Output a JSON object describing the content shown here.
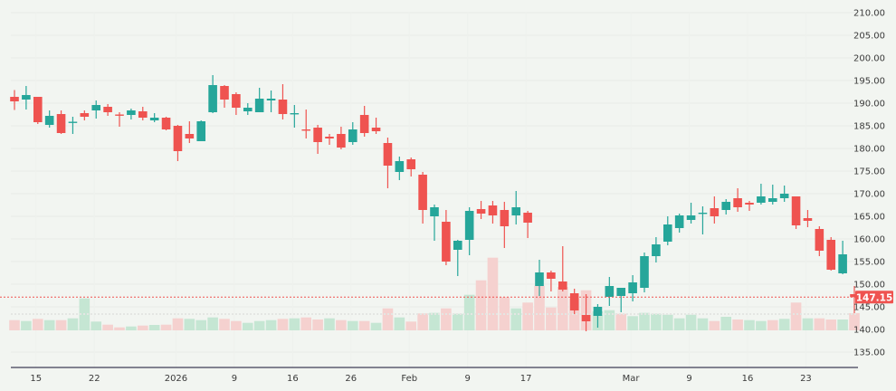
{
  "chart_data": {
    "type": "candlestick",
    "title": "",
    "xlabel": "",
    "ylabel": "",
    "ylim": [
      135,
      210
    ],
    "y_ticks": [
      "135.00",
      "140.00",
      "145.00",
      "150.00",
      "155.00",
      "160.00",
      "165.00",
      "170.00",
      "175.00",
      "180.00",
      "185.00",
      "190.00",
      "195.00",
      "200.00",
      "205.00",
      "210.00"
    ],
    "x_tick_labels": [
      {
        "date": "2025-12-15",
        "label": "15"
      },
      {
        "date": "2025-12-22",
        "label": "22"
      },
      {
        "date": "2026-01-02",
        "label": "2026"
      },
      {
        "date": "2026-01-09",
        "label": "9"
      },
      {
        "date": "2026-01-16",
        "label": "16"
      },
      {
        "date": "2026-01-26",
        "label": "26"
      },
      {
        "date": "2026-02-02",
        "label": "Feb"
      },
      {
        "date": "2026-02-09",
        "label": "9"
      },
      {
        "date": "2026-02-17",
        "label": "17"
      },
      {
        "date": "2026-03-02",
        "label": "Mar"
      },
      {
        "date": "2026-03-09",
        "label": "9"
      },
      {
        "date": "2026-03-16",
        "label": "16"
      },
      {
        "date": "2026-03-23",
        "label": "23"
      }
    ],
    "grid": true,
    "last_price": "147.15",
    "colors": {
      "up": "#26a69a",
      "down": "#ef5350",
      "volume_up": "#c5e6d3",
      "volume_down": "#f5d1cf",
      "background": "#f2f5f1"
    },
    "dates": [
      "2025-12-11",
      "2025-12-12",
      "2025-12-15",
      "2025-12-16",
      "2025-12-17",
      "2025-12-18",
      "2025-12-19",
      "2025-12-22",
      "2025-12-23",
      "2025-12-24",
      "2025-12-26",
      "2025-12-29",
      "2025-12-30",
      "2025-12-31",
      "2026-01-02",
      "2026-01-05",
      "2026-01-06",
      "2026-01-07",
      "2026-01-08",
      "2026-01-09",
      "2026-01-12",
      "2026-01-13",
      "2026-01-14",
      "2026-01-15",
      "2026-01-16",
      "2026-01-20",
      "2026-01-21",
      "2026-01-22",
      "2026-01-23",
      "2026-01-26",
      "2026-01-27",
      "2026-01-28",
      "2026-01-29",
      "2026-01-30",
      "2026-02-02",
      "2026-02-03",
      "2026-02-04",
      "2026-02-05",
      "2026-02-06",
      "2026-02-09",
      "2026-02-10",
      "2026-02-11",
      "2026-02-12",
      "2026-02-13",
      "2026-02-17",
      "2026-02-18",
      "2026-02-19",
      "2026-02-20",
      "2026-02-23",
      "2026-02-24",
      "2026-02-25",
      "2026-02-26",
      "2026-02-27",
      "2026-03-02",
      "2026-03-03",
      "2026-03-04",
      "2026-03-05",
      "2026-03-06",
      "2026-03-09",
      "2026-03-10",
      "2026-03-11",
      "2026-03-12",
      "2026-03-13",
      "2026-03-16",
      "2026-03-17",
      "2026-03-18",
      "2026-03-19",
      "2026-03-20",
      "2026-03-23",
      "2026-03-24",
      "2026-03-25",
      "2026-03-26",
      "2026-03-27"
    ],
    "ohlc": [
      [
        191.4,
        192.9,
        188.5,
        190.4
      ],
      [
        190.8,
        193.8,
        188.6,
        191.8
      ],
      [
        191.4,
        191.4,
        185.4,
        185.8
      ],
      [
        185.2,
        188.4,
        184.6,
        187.2
      ],
      [
        187.6,
        188.4,
        183.2,
        183.4
      ],
      [
        185.7,
        187.0,
        183.2,
        185.9
      ],
      [
        187.8,
        188.4,
        186.2,
        187.0
      ],
      [
        188.4,
        190.6,
        186.6,
        189.6
      ],
      [
        189.2,
        189.8,
        187.2,
        188.0
      ],
      [
        187.5,
        188.0,
        184.8,
        187.3
      ],
      [
        187.4,
        188.8,
        186.4,
        188.4
      ],
      [
        188.2,
        189.2,
        186.2,
        186.8
      ],
      [
        186.2,
        187.8,
        185.8,
        186.8
      ],
      [
        186.8,
        187.0,
        184.0,
        184.2
      ],
      [
        185.0,
        185.2,
        177.2,
        179.4
      ],
      [
        183.2,
        186.0,
        181.2,
        182.2
      ],
      [
        181.6,
        186.2,
        181.6,
        186.0
      ],
      [
        188.0,
        196.2,
        187.8,
        194.0
      ],
      [
        193.8,
        194.0,
        189.0,
        190.8
      ],
      [
        192.0,
        192.4,
        187.4,
        189.0
      ],
      [
        188.2,
        190.0,
        187.4,
        189.0
      ],
      [
        188.0,
        193.4,
        188.0,
        191.0
      ],
      [
        190.6,
        192.8,
        188.0,
        191.0
      ],
      [
        190.8,
        194.2,
        186.4,
        187.6
      ],
      [
        187.6,
        189.6,
        184.6,
        187.8
      ],
      [
        184.2,
        188.6,
        182.2,
        184.0
      ],
      [
        184.6,
        185.2,
        178.8,
        181.4
      ],
      [
        182.6,
        183.2,
        180.8,
        182.2
      ],
      [
        183.2,
        184.8,
        179.8,
        180.2
      ],
      [
        181.4,
        185.8,
        180.8,
        184.2
      ],
      [
        187.4,
        189.4,
        182.6,
        183.4
      ],
      [
        184.6,
        186.8,
        183.2,
        183.8
      ],
      [
        181.2,
        182.4,
        171.2,
        176.2
      ],
      [
        174.8,
        178.2,
        173.0,
        177.2
      ],
      [
        177.6,
        178.0,
        173.8,
        175.4
      ],
      [
        174.2,
        174.8,
        163.4,
        166.4
      ],
      [
        165.0,
        167.6,
        159.6,
        167.0
      ],
      [
        163.8,
        166.4,
        154.2,
        155.0
      ],
      [
        157.6,
        159.8,
        151.8,
        159.6
      ],
      [
        159.8,
        167.0,
        156.4,
        166.2
      ],
      [
        166.6,
        168.4,
        164.4,
        165.6
      ],
      [
        167.4,
        168.4,
        163.4,
        165.2
      ],
      [
        166.4,
        168.2,
        158.0,
        162.8
      ],
      [
        165.2,
        170.6,
        163.2,
        167.0
      ],
      [
        165.8,
        166.2,
        160.2,
        163.6
      ],
      [
        149.6,
        155.4,
        147.4,
        152.6
      ],
      [
        152.6,
        153.0,
        148.4,
        151.2
      ],
      [
        150.6,
        158.4,
        148.4,
        148.8
      ],
      [
        148.0,
        149.0,
        143.4,
        144.2
      ],
      [
        143.2,
        147.8,
        139.6,
        141.8
      ],
      [
        143.0,
        145.6,
        140.4,
        145.0
      ],
      [
        147.2,
        151.6,
        145.2,
        149.6
      ],
      [
        147.4,
        149.2,
        143.8,
        149.2
      ],
      [
        148.0,
        152.0,
        146.2,
        150.4
      ],
      [
        149.2,
        157.0,
        148.2,
        156.2
      ],
      [
        156.2,
        160.4,
        154.8,
        158.8
      ],
      [
        159.4,
        165.0,
        158.6,
        163.2
      ],
      [
        162.4,
        165.6,
        161.4,
        165.2
      ],
      [
        164.2,
        168.0,
        163.4,
        165.2
      ],
      [
        165.6,
        167.2,
        161.0,
        165.8
      ],
      [
        166.8,
        169.4,
        163.4,
        165.0
      ],
      [
        166.4,
        168.8,
        165.4,
        168.2
      ],
      [
        169.0,
        171.2,
        166.0,
        167.0
      ],
      [
        168.0,
        168.4,
        166.2,
        167.6
      ],
      [
        168.0,
        172.2,
        167.6,
        169.4
      ],
      [
        168.2,
        172.0,
        167.6,
        169.0
      ],
      [
        169.0,
        171.8,
        168.2,
        170.0
      ],
      [
        169.4,
        169.4,
        162.2,
        163.0
      ],
      [
        164.6,
        166.4,
        162.6,
        164.0
      ],
      [
        162.2,
        162.8,
        156.2,
        157.4
      ],
      [
        159.8,
        160.4,
        153.0,
        153.2
      ],
      [
        152.4,
        159.6,
        152.2,
        156.6
      ],
      [
        147.8,
        149.6,
        143.6,
        147.15
      ]
    ],
    "volume": [
      11.3,
      10.3,
      12.7,
      11.3,
      11.3,
      13.3,
      35.3,
      9.7,
      6.3,
      3.3,
      4.3,
      5.3,
      6.0,
      6.3,
      13.3,
      12.7,
      11.3,
      14.3,
      12.7,
      10.3,
      8.3,
      10.3,
      11.3,
      12.7,
      13.3,
      14.3,
      12.0,
      13.3,
      11.3,
      10.3,
      10.3,
      8.3,
      24.3,
      14.3,
      9.7,
      18.7,
      19.3,
      24.3,
      18.3,
      39.3,
      55.3,
      80.3,
      36.7,
      24.3,
      30.7,
      49.3,
      25.3,
      48.0,
      35.3,
      44.3,
      21.0,
      22.3,
      18.3,
      15.7,
      19.3,
      18.3,
      17.3,
      13.3,
      17.3,
      13.3,
      10.3,
      15.0,
      12.0,
      11.3,
      10.3,
      11.3,
      12.7,
      30.7,
      13.3,
      13.3,
      12.0,
      12.0,
      19.0
    ]
  }
}
